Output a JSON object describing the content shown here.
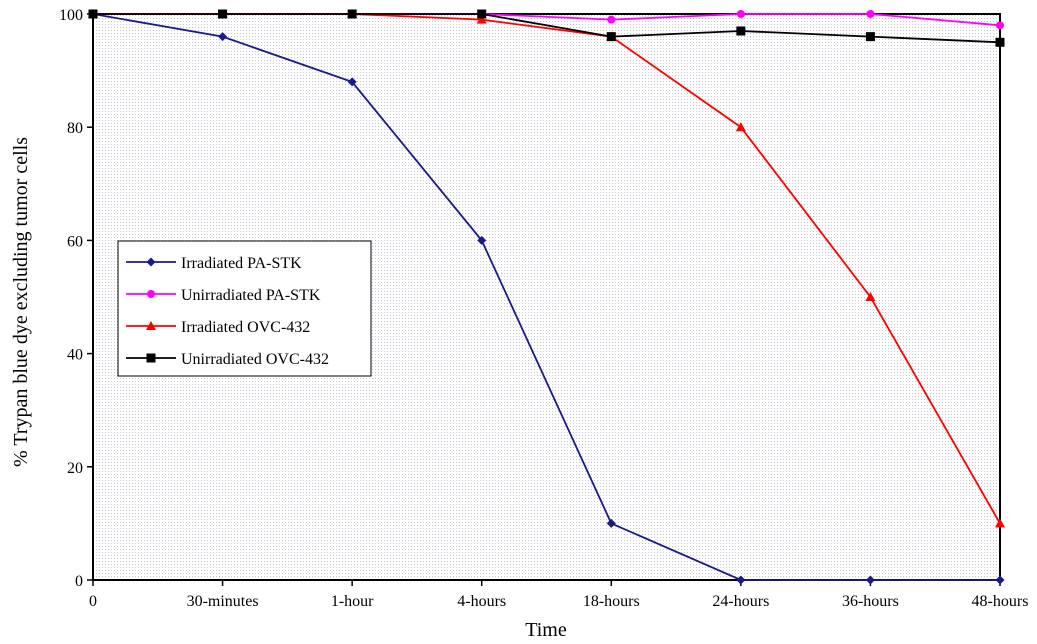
{
  "chart_data": {
    "type": "line",
    "title": "",
    "xlabel": "Time",
    "ylabel": "% Trypan blue dye excluding tumor cells",
    "categories": [
      "0",
      "30-minutes",
      "1-hour",
      "4-hours",
      "18-hours",
      "24-hours",
      "36-hours",
      "48-hours"
    ],
    "ylim": [
      0,
      100
    ],
    "yticks": [
      0,
      20,
      40,
      60,
      80,
      100
    ],
    "grid": false,
    "legend_position": "left-middle",
    "series": [
      {
        "name": "Irradiated PA-STK",
        "color": "#1a1a8c",
        "marker": "diamond",
        "values": [
          100,
          96,
          88,
          60,
          10,
          0,
          0,
          0
        ]
      },
      {
        "name": "Unirradiated PA-STK",
        "color": "#ff00ff",
        "marker": "circle",
        "values": [
          100,
          100,
          100,
          100,
          99,
          100,
          100,
          98
        ]
      },
      {
        "name": "Irradiated OVC-432",
        "color": "#ff0000",
        "marker": "triangle",
        "values": [
          100,
          100,
          100,
          99,
          96,
          80,
          50,
          10
        ]
      },
      {
        "name": "Unirradiated OVC-432",
        "color": "#000000",
        "marker": "square",
        "values": [
          100,
          100,
          100,
          100,
          96,
          97,
          96,
          95
        ]
      }
    ]
  }
}
